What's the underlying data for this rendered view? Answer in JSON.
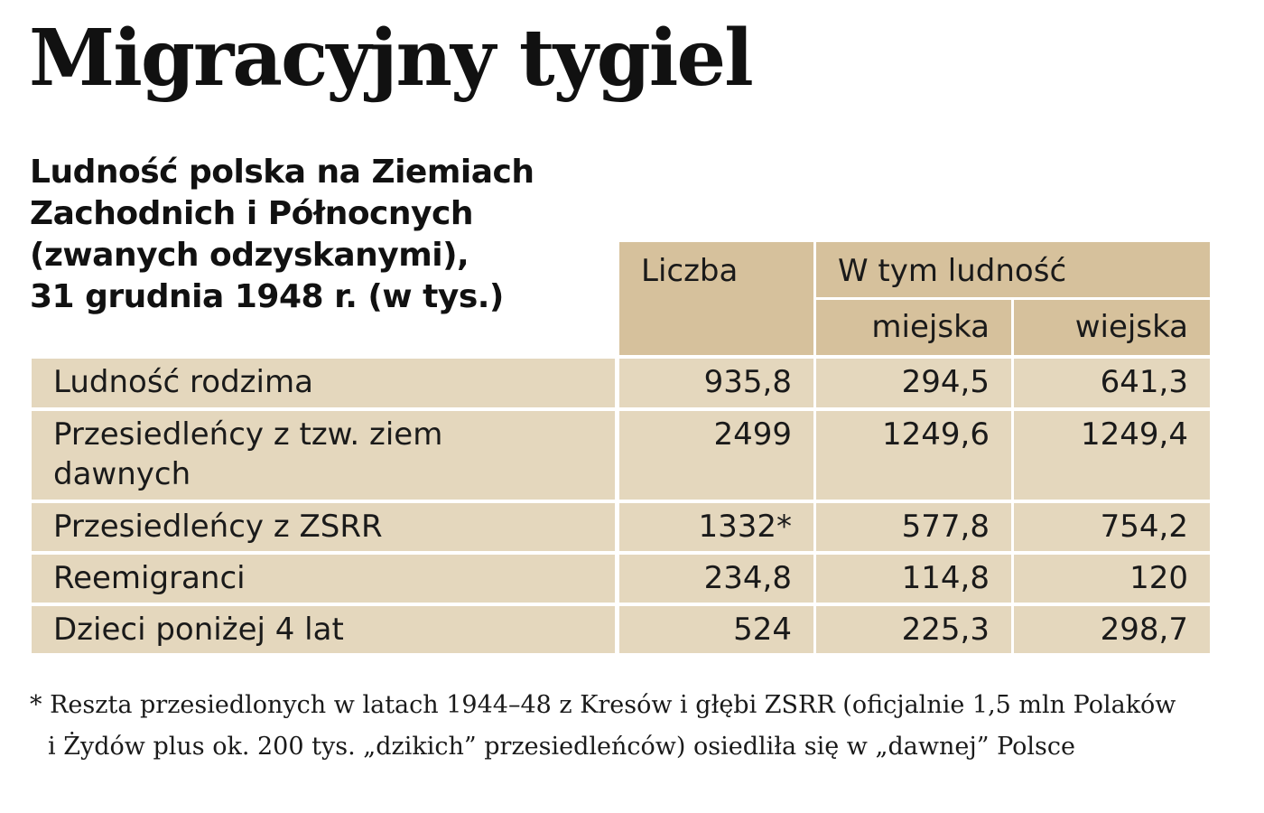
{
  "title": "Migracyjny tygiel",
  "subtitle_lines": [
    "Ludność polska na Ziemiach",
    "Zachodnich i Północnych",
    "(zwanych odzyskanymi),",
    "31 grudnia 1948 r. (w tys.)"
  ],
  "colors": {
    "header_bg": "#d6c19c",
    "body_bg": "#e4d7bd"
  },
  "chart_data": {
    "type": "table",
    "title": "Migracyjny tygiel",
    "subtitle": "Ludność polska na Ziemiach Zachodnich i Północnych (zwanych odzyskanymi), 31 grudnia 1948 r. (w tys.)",
    "columns": {
      "count": "Liczba",
      "group": "W tym ludność",
      "urban": "miejska",
      "rural": "wiejska"
    },
    "rows": [
      {
        "label": "Ludność rodzima",
        "count": "935,8",
        "urban": "294,5",
        "rural": "641,3"
      },
      {
        "label_lines": [
          "Przesiedleńcy z tzw. ziem",
          "dawnych"
        ],
        "count": "2499",
        "urban": "1249,6",
        "rural": "1249,4"
      },
      {
        "label": "Przesiedleńcy z ZSRR",
        "count": "1332*",
        "urban": "577,8",
        "rural": "754,2"
      },
      {
        "label": "Reemigranci",
        "count": "234,8",
        "urban": "114,8",
        "rural": "120"
      },
      {
        "label": "Dzieci poniżej 4 lat",
        "count": "524",
        "urban": "225,3",
        "rural": "298,7"
      }
    ]
  },
  "footnote_lines": [
    "* Reszta przesiedlonych w latach 1944–48 z Kresów i głębi ZSRR (oficjalnie 1,5 mln Polaków",
    "i Żydów plus ok. 200 tys. „dzikich” przesiedleńców) osiedliła się w „dawnej” Polsce"
  ]
}
